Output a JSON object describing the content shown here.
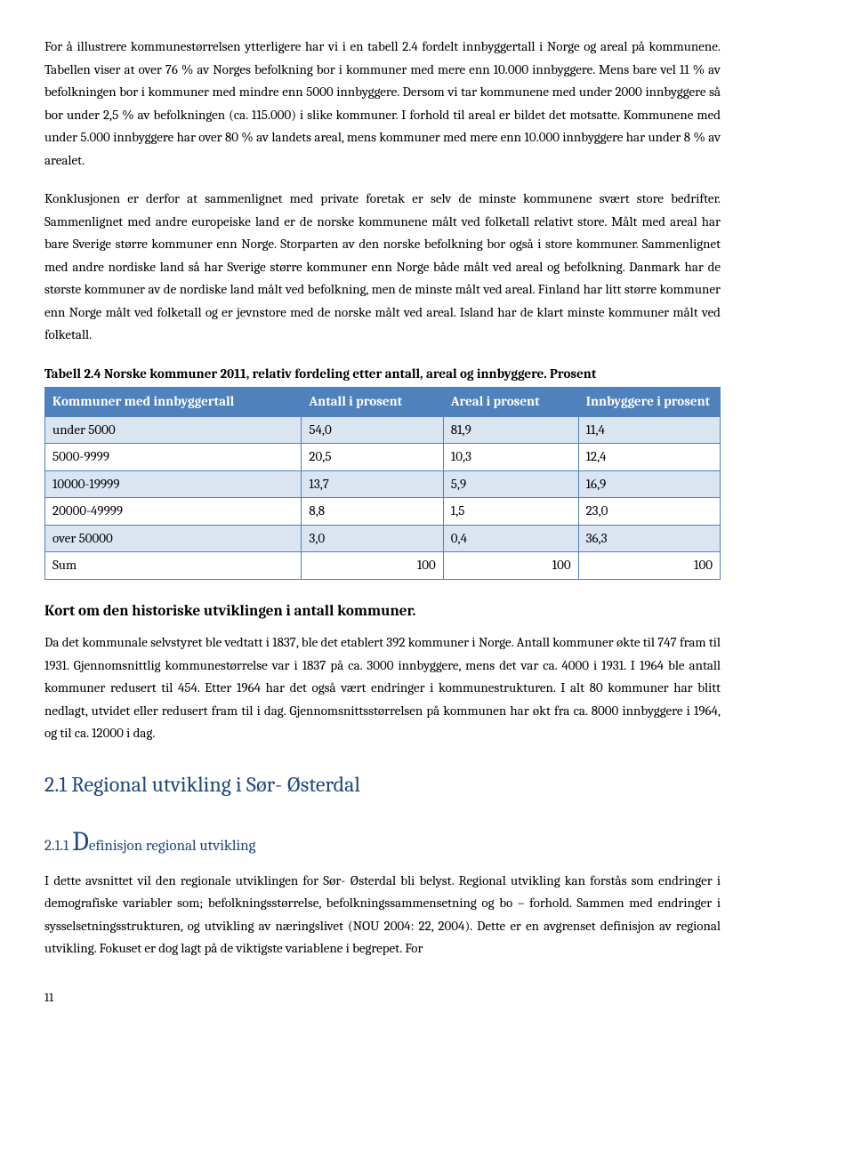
{
  "para1": "For å illustrere kommunestørrelsen ytterligere har vi i en tabell 2.4 fordelt innbyggertall i Norge og areal på kommunene. Tabellen viser at over 76 % av Norges befolkning bor i kommuner med mere enn 10.000 innbyggere. Mens bare vel 11 % av befolkningen bor i kommuner med mindre enn 5000 innbyggere. Dersom vi tar kommunene med under 2000 innbyggere så bor under 2,5 % av befolkningen (ca. 115.000) i slike kommuner. I forhold til areal er bildet det motsatte. Kommunene med under 5.000 innbyggere har over 80 % av landets areal, mens kommuner med mere enn 10.000 innbyggere har under 8 % av arealet.",
  "para2": "Konklusjonen er derfor at sammenlignet med private foretak er selv de minste kommunene svært store bedrifter. Sammenlignet med andre europeiske land er de norske kommunene målt ved folketall relativt store. Målt med areal har bare Sverige større kommuner enn Norge. Storparten av den norske befolkning bor også i store kommuner. Sammenlignet med andre nordiske land så har Sverige større kommuner enn Norge både målt ved areal og befolkning. Danmark har de største kommuner av de nordiske land målt ved befolkning, men de minste målt ved areal. Finland har litt større kommuner enn Norge målt ved folketall og er jevnstore med de norske målt ved areal. Island har de klart minste kommuner målt ved folketall.",
  "table": {
    "caption": "Tabell 2.4 Norske kommuner 2011, relativ fordeling etter antall, areal og innbyggere. Prosent",
    "headers": [
      "Kommuner med innbyggertall",
      "Antall i prosent",
      "Areal i prosent",
      "Innbyggere i prosent"
    ],
    "rows": [
      [
        "under 5000",
        "54,0",
        "81,9",
        "11,4"
      ],
      [
        "5000-9999",
        "20,5",
        "10,3",
        "12,4"
      ],
      [
        "10000-19999",
        "13,7",
        "5,9",
        "16,9"
      ],
      [
        "20000-49999",
        "8,8",
        "1,5",
        "23,0"
      ],
      [
        "over 50000",
        "3,0",
        "0,4",
        "36,3"
      ]
    ],
    "sum_label": "Sum",
    "sum_values": [
      "100",
      "100",
      "100"
    ],
    "header_bg": "#4f81bd",
    "header_color": "#ffffff",
    "band_bg": "#dbe5f1",
    "border_color": "#4f81bd"
  },
  "section_heading": "Kort om den historiske utviklingen i antall kommuner.",
  "para3": "Da det kommunale selvstyret ble vedtatt i 1837, ble det etablert 392 kommuner i Norge. Antall kommuner økte til 747 fram til 1931. Gjennomsnittlig kommunestørrelse var i 1837 på ca. 3000 innbyggere, mens det var ca. 4000 i 1931. I 1964 ble antall kommuner redusert til 454. Etter 1964 har det også vært endringer i kommunestrukturen. I alt 80 kommuner har blitt nedlagt, utvidet eller redusert fram til i dag. Gjennomsnittsstørrelsen på kommunen har økt fra ca. 8000 innbyggere i 1964, og til ca. 12000 i dag.",
  "blue_heading": "2.1 Regional utvikling i Sør- Østerdal",
  "sub_number": "2.1.1 ",
  "sub_dropcap": "D",
  "sub_rest": "efinisjon regional utvikling",
  "para4": "I dette avsnittet vil den regionale utviklingen for Sør- Østerdal bli belyst. Regional utvikling kan forstås som endringer i demografiske variabler som; befolkningsstørrelse, befolkningssammensetning og bo – forhold. Sammen med endringer i sysselsetningsstrukturen, og utvikling av næringslivet (NOU 2004: 22, 2004). Dette er en avgrenset definisjon av regional utvikling. Fokuset er dog lagt på de viktigste variablene i begrepet. For",
  "page_number": "11"
}
